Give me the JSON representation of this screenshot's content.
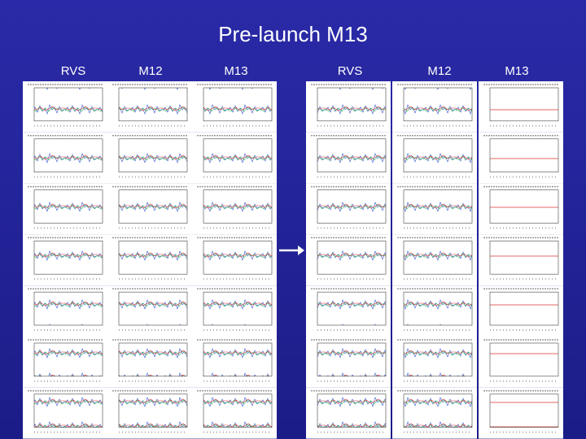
{
  "header": {
    "title": "Pre-launch M13"
  },
  "columns": [
    "RVS",
    "M12",
    "M13",
    "RVS",
    "M12",
    "M13"
  ]
}
